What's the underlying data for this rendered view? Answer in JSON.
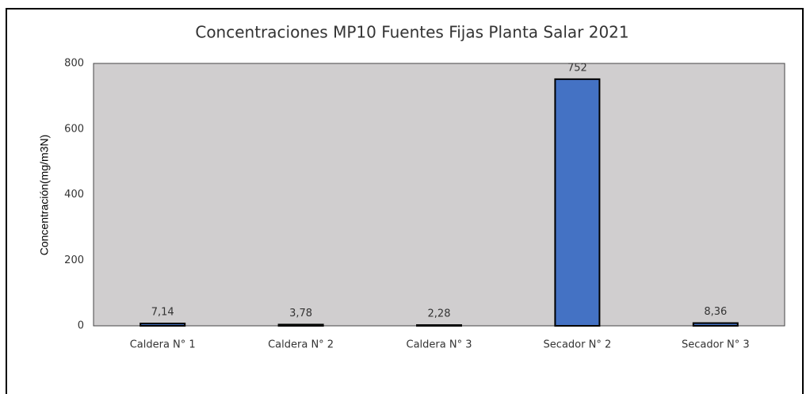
{
  "chart_data": {
    "type": "bar",
    "title": "Concentraciones  MP10 Fuentes Fijas Planta Salar 2021",
    "y_label": "Concentración(mg/m3N)",
    "categories": [
      "Caldera N° 1",
      "Caldera N° 2",
      "Caldera N° 3",
      "Secador N° 2",
      "Secador N° 3"
    ],
    "values": [
      7.14,
      3.78,
      2.28,
      752,
      8.36
    ],
    "value_labels": [
      "7,14",
      "3,78",
      "2,28",
      "752",
      "8,36"
    ],
    "color": "#4472c4",
    "ylim": [
      0,
      800
    ],
    "yticks": [
      0,
      200,
      400,
      600,
      800
    ],
    "grid": false
  }
}
